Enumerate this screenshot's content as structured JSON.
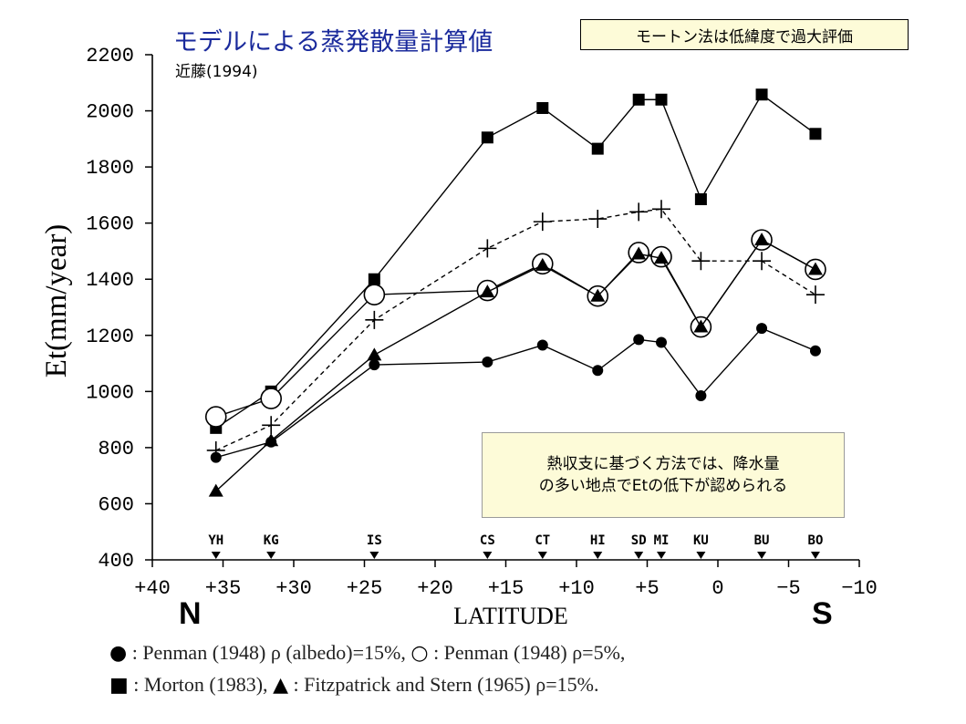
{
  "header": {
    "title": "モデルによる蒸発散量計算値",
    "subtitle": "近藤(1994)"
  },
  "notes": {
    "top": "モートン法は低緯度で過大評価",
    "middle_line1": "熱収支に基づく方法では、降水量",
    "middle_line2": "の多い地点でEtの低下が認められる"
  },
  "direction": {
    "north": "N",
    "south": "S"
  },
  "legend": {
    "line1_a_symbol": "●",
    "line1_a_text": ": Penman (1948) ρ (albedo)=15%,",
    "line1_b_symbol": "○",
    "line1_b_text": ": Penman (1948) ρ=5%,",
    "line2_a_symbol": "■",
    "line2_a_text": ": Morton (1983),",
    "line2_b_symbol": "▲",
    "line2_b_text": ": Fitzpatrick and Stern (1965) ρ=15%."
  },
  "chart_data": {
    "type": "line",
    "xlabel": "LATITUDE",
    "ylabel": "Et(mm/year)",
    "xlim": [
      40,
      -10
    ],
    "ylim": [
      400,
      2200
    ],
    "xticks": [
      40,
      35,
      30,
      25,
      20,
      15,
      10,
      5,
      0,
      -5,
      -10
    ],
    "xtick_labels": [
      "+40",
      "+35",
      "+30",
      "+25",
      "+20",
      "+15",
      "+10",
      "+5",
      "0",
      "−5",
      "−10"
    ],
    "yticks": [
      400,
      600,
      800,
      1000,
      1200,
      1400,
      1600,
      1800,
      2000,
      2200
    ],
    "stations": [
      {
        "name": "YH",
        "lat": 35.5
      },
      {
        "name": "KG",
        "lat": 31.6
      },
      {
        "name": "IS",
        "lat": 24.3
      },
      {
        "name": "CS",
        "lat": 16.3
      },
      {
        "name": "CT",
        "lat": 12.4
      },
      {
        "name": "HI",
        "lat": 8.5
      },
      {
        "name": "SD",
        "lat": 5.6
      },
      {
        "name": "MI",
        "lat": 4.0
      },
      {
        "name": "KU",
        "lat": 1.2
      },
      {
        "name": "BU",
        "lat": -3.1
      },
      {
        "name": "BO",
        "lat": -6.9
      }
    ],
    "series": [
      {
        "marker": "square",
        "dashed": false,
        "points": [
          [
            35.5,
            870
          ],
          [
            31.6,
            1000
          ],
          [
            24.3,
            1400
          ],
          [
            16.3,
            1905
          ],
          [
            12.4,
            2010
          ],
          [
            8.5,
            1865
          ],
          [
            5.6,
            2040
          ],
          [
            4.0,
            2040
          ],
          [
            1.2,
            1685
          ],
          [
            -3.1,
            2058
          ],
          [
            -6.9,
            1918
          ]
        ]
      },
      {
        "marker": "plus",
        "dashed": true,
        "points": [
          [
            35.5,
            790
          ],
          [
            31.6,
            880
          ],
          [
            24.3,
            1255
          ],
          [
            16.3,
            1510
          ],
          [
            12.4,
            1605
          ],
          [
            8.5,
            1615
          ],
          [
            5.6,
            1640
          ],
          [
            4.0,
            1650
          ],
          [
            1.2,
            1465
          ],
          [
            -3.1,
            1465
          ],
          [
            -6.9,
            1345
          ]
        ]
      },
      {
        "marker": "open-circle",
        "dashed": false,
        "points": [
          [
            35.5,
            910
          ],
          [
            31.6,
            975
          ],
          [
            24.3,
            1345
          ],
          [
            16.3,
            1360
          ],
          [
            12.4,
            1455
          ],
          [
            8.5,
            1340
          ],
          [
            5.6,
            1495
          ],
          [
            4.0,
            1480
          ],
          [
            1.2,
            1230
          ],
          [
            -3.1,
            1540
          ],
          [
            -6.9,
            1435
          ]
        ]
      },
      {
        "marker": "triangle",
        "dashed": false,
        "points": [
          [
            35.5,
            645
          ],
          [
            31.6,
            825
          ],
          [
            24.3,
            1130
          ],
          [
            16.3,
            1355
          ],
          [
            12.4,
            1450
          ],
          [
            8.5,
            1340
          ],
          [
            5.6,
            1490
          ],
          [
            4.0,
            1475
          ],
          [
            1.2,
            1230
          ],
          [
            -3.1,
            1540
          ],
          [
            -6.9,
            1435
          ]
        ]
      },
      {
        "marker": "filled-circle",
        "dashed": false,
        "points": [
          [
            35.5,
            765
          ],
          [
            31.6,
            820
          ],
          [
            24.3,
            1095
          ],
          [
            16.3,
            1105
          ],
          [
            12.4,
            1165
          ],
          [
            8.5,
            1075
          ],
          [
            5.6,
            1185
          ],
          [
            4.0,
            1175
          ],
          [
            1.2,
            985
          ],
          [
            -3.1,
            1225
          ],
          [
            -6.9,
            1145
          ]
        ]
      }
    ]
  }
}
